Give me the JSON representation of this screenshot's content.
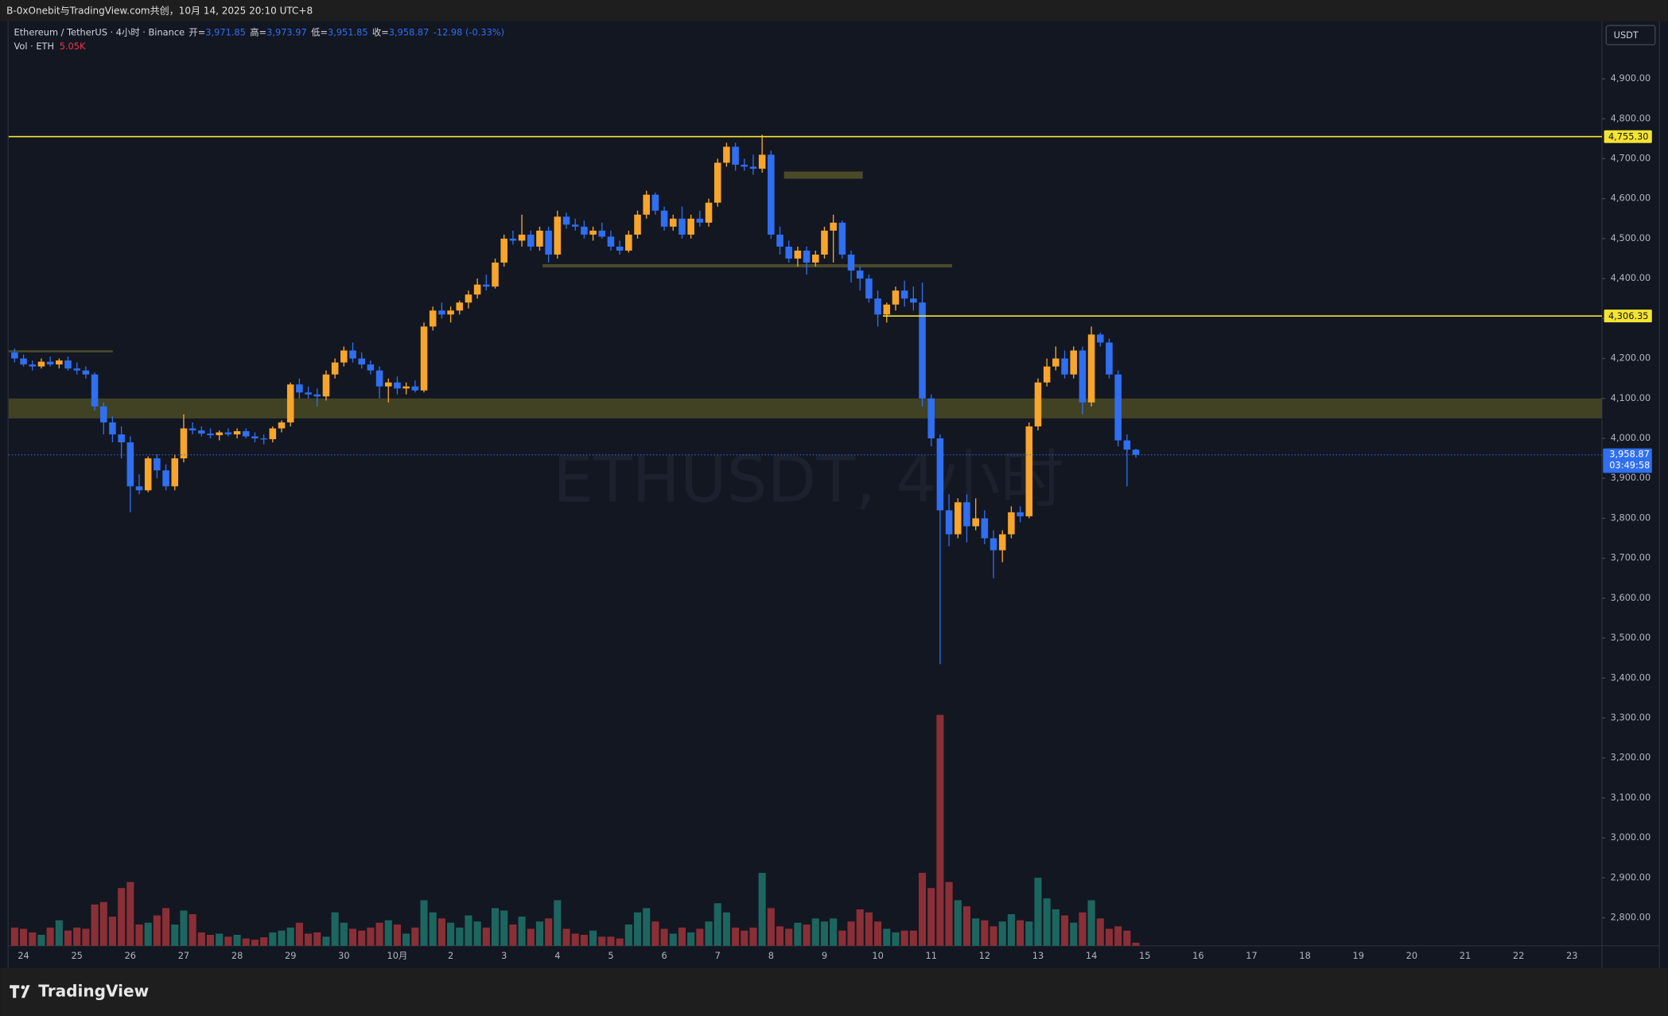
{
  "header": {
    "title": "B-0xOnebit与TradingView.com共创，10月 14, 2025 20:10 UTC+8"
  },
  "footer": {
    "brand": "TradingView"
  },
  "chart_data": {
    "type": "candlestick",
    "watermark": "ETHUSDT, 4小时",
    "currency": "USDT",
    "legend": {
      "symbol": "Ethereum / TetherUS · 4小时 · Binance",
      "open_label": "开=",
      "open": "3,971.85",
      "high_label": "高=",
      "high": "3,973.97",
      "low_label": "低=",
      "low": "3,951.85",
      "close_label": "收=",
      "close": "3,958.87",
      "change": "-12.98 (-0.33%)",
      "volume_name": "Vol · ETH",
      "volume": "5.05K"
    },
    "up_color": "#f7a52b",
    "down_color": "#2f6ff0",
    "vol_up_color": "#1d6660",
    "vol_down_color": "#8a2f36",
    "ylim": [
      2730,
      5044
    ],
    "yticks": [
      {
        "value": 2800,
        "label": "2,800.00"
      },
      {
        "value": 2900,
        "label": "2,900.00"
      },
      {
        "value": 3000,
        "label": "3,000.00"
      },
      {
        "value": 3100,
        "label": "3,100.00"
      },
      {
        "value": 3200,
        "label": "3,200.00"
      },
      {
        "value": 3300,
        "label": "3,300.00"
      },
      {
        "value": 3400,
        "label": "3,400.00"
      },
      {
        "value": 3500,
        "label": "3,500.00"
      },
      {
        "value": 3600,
        "label": "3,600.00"
      },
      {
        "value": 3700,
        "label": "3,700.00"
      },
      {
        "value": 3800,
        "label": "3,800.00"
      },
      {
        "value": 3900,
        "label": "3,900.00"
      },
      {
        "value": 4000,
        "label": "4,000.00"
      },
      {
        "value": 4100,
        "label": "4,100.00"
      },
      {
        "value": 4200,
        "label": "4,200.00"
      },
      {
        "value": 4300,
        "label": "4,300.00"
      },
      {
        "value": 4400,
        "label": "4,400.00"
      },
      {
        "value": 4500,
        "label": "4,500.00"
      },
      {
        "value": 4600,
        "label": "4,600.00"
      },
      {
        "value": 4700,
        "label": "4,700.00"
      },
      {
        "value": 4800,
        "label": "4,800.00"
      },
      {
        "value": 4900,
        "label": "4,900.00"
      }
    ],
    "xticks": [
      "24",
      "25",
      "26",
      "27",
      "28",
      "29",
      "30",
      "10月",
      "2",
      "3",
      "4",
      "5",
      "6",
      "7",
      "8",
      "9",
      "10",
      "11",
      "12",
      "13",
      "14",
      "15",
      "16",
      "17",
      "18",
      "19",
      "20",
      "21",
      "22",
      "23"
    ],
    "grid": false,
    "levels": [
      {
        "value": 4755.3,
        "label": "4,755.30"
      },
      {
        "value": 4306.35,
        "label": "4,306.35"
      }
    ],
    "zone": [
      4050,
      4100
    ],
    "support_lines": [
      4218,
      4432
    ],
    "box": [
      4650,
      4668
    ],
    "last_price_label": "3,958.87",
    "countdown": "03:49:58",
    "open": [
      4215,
      4200,
      4185,
      4180,
      4192,
      4185,
      4195,
      4175,
      4170,
      4160,
      4080,
      4040,
      4010,
      3990,
      3880,
      3870,
      3950,
      3920,
      3880,
      3950,
      4025,
      4020,
      4012,
      4008,
      4015,
      4010,
      4018,
      4005,
      4000,
      3998,
      4025,
      4040,
      4135,
      4115,
      4110,
      4105,
      4160,
      4190,
      4220,
      4200,
      4185,
      4170,
      4130,
      4140,
      4125,
      4130,
      4120,
      4280,
      4320,
      4310,
      4320,
      4340,
      4360,
      4385,
      4380,
      4440,
      4500,
      4495,
      4510,
      4480,
      4520,
      4460,
      4555,
      4535,
      4530,
      4510,
      4520,
      4505,
      4480,
      4470,
      4510,
      4560,
      4610,
      4570,
      4530,
      4550,
      4510,
      4550,
      4540,
      4590,
      4690,
      4730,
      4685,
      4680,
      4675,
      4710,
      4510,
      4480,
      4450,
      4470,
      4440,
      4460,
      4520,
      4540,
      4460,
      4420,
      4400,
      4350,
      4310,
      4335,
      4370,
      4350,
      4340,
      4100,
      4000,
      3820,
      3760,
      3840,
      3780,
      3800,
      3750,
      3720,
      3760,
      3815,
      3805,
      4030,
      4140,
      4180,
      4200,
      4160,
      4220,
      4090,
      4260,
      4240,
      4160,
      3995,
      3971.85
    ],
    "high": [
      4225,
      4210,
      4195,
      4200,
      4205,
      4200,
      4205,
      4190,
      4180,
      4165,
      4090,
      4055,
      4030,
      4005,
      3910,
      3955,
      3960,
      3935,
      3960,
      4060,
      4040,
      4030,
      4025,
      4020,
      4025,
      4025,
      4025,
      4015,
      4010,
      4030,
      4045,
      4140,
      4150,
      4130,
      4125,
      4170,
      4200,
      4230,
      4240,
      4215,
      4195,
      4180,
      4150,
      4155,
      4140,
      4145,
      4290,
      4330,
      4340,
      4330,
      4345,
      4370,
      4400,
      4410,
      4450,
      4510,
      4520,
      4560,
      4520,
      4530,
      4530,
      4570,
      4565,
      4550,
      4545,
      4530,
      4540,
      4520,
      4495,
      4520,
      4570,
      4620,
      4615,
      4580,
      4560,
      4580,
      4560,
      4570,
      4600,
      4700,
      4740,
      4740,
      4700,
      4710,
      4760,
      4720,
      4530,
      4495,
      4480,
      4480,
      4470,
      4530,
      4560,
      4545,
      4470,
      4430,
      4410,
      4370,
      4340,
      4380,
      4395,
      4380,
      4390,
      4110,
      4010,
      3860,
      3850,
      3860,
      3850,
      3820,
      3770,
      3770,
      3830,
      3830,
      4040,
      4150,
      4200,
      4230,
      4220,
      4230,
      4230,
      4280,
      4265,
      4250,
      4170,
      4010,
      3973.97
    ],
    "low": [
      4190,
      4180,
      4170,
      4175,
      4180,
      4175,
      4170,
      4160,
      4150,
      4070,
      4010,
      3990,
      3950,
      3815,
      3860,
      3865,
      3900,
      3870,
      3870,
      3940,
      4010,
      4005,
      4000,
      3995,
      4005,
      4000,
      4000,
      3990,
      3985,
      3990,
      4015,
      4030,
      4100,
      4100,
      4080,
      4095,
      4150,
      4180,
      4190,
      4175,
      4160,
      4100,
      4090,
      4110,
      4110,
      4115,
      4115,
      4270,
      4300,
      4290,
      4310,
      4325,
      4350,
      4370,
      4375,
      4430,
      4485,
      4480,
      4470,
      4470,
      4440,
      4450,
      4525,
      4520,
      4500,
      4495,
      4500,
      4470,
      4460,
      4465,
      4500,
      4550,
      4560,
      4520,
      4520,
      4500,
      4500,
      4530,
      4530,
      4580,
      4680,
      4670,
      4670,
      4660,
      4665,
      4500,
      4460,
      4440,
      4430,
      4410,
      4430,
      4450,
      4440,
      4450,
      4390,
      4370,
      4340,
      4280,
      4290,
      4320,
      4330,
      4320,
      4080,
      3980,
      3435,
      3730,
      3750,
      3740,
      3770,
      3735,
      3650,
      3690,
      3750,
      3790,
      3800,
      4020,
      4130,
      4170,
      4150,
      4150,
      4060,
      4080,
      4230,
      4150,
      3980,
      3880,
      3951.85
    ],
    "close": [
      4200,
      4185,
      4180,
      4192,
      4185,
      4195,
      4175,
      4170,
      4160,
      4080,
      4040,
      4010,
      3990,
      3880,
      3870,
      3950,
      3920,
      3880,
      3950,
      4025,
      4020,
      4012,
      4008,
      4015,
      4010,
      4018,
      4005,
      4000,
      3998,
      4025,
      4040,
      4135,
      4115,
      4110,
      4105,
      4160,
      4190,
      4220,
      4200,
      4185,
      4170,
      4130,
      4140,
      4125,
      4130,
      4120,
      4280,
      4320,
      4310,
      4320,
      4340,
      4360,
      4385,
      4380,
      4440,
      4500,
      4495,
      4510,
      4480,
      4520,
      4460,
      4555,
      4535,
      4530,
      4510,
      4520,
      4505,
      4480,
      4470,
      4510,
      4560,
      4610,
      4570,
      4530,
      4550,
      4510,
      4550,
      4540,
      4590,
      4690,
      4730,
      4685,
      4680,
      4675,
      4710,
      4510,
      4480,
      4450,
      4470,
      4440,
      4460,
      4520,
      4540,
      4460,
      4420,
      4400,
      4350,
      4310,
      4335,
      4370,
      4350,
      4340,
      4100,
      4000,
      3820,
      3760,
      3840,
      3780,
      3800,
      3750,
      3720,
      3760,
      3815,
      3805,
      4030,
      4140,
      4180,
      4200,
      4160,
      4220,
      4090,
      4260,
      4240,
      4160,
      3995,
      3971.85,
      3958.87
    ],
    "volume": [
      30000,
      28000,
      22000,
      18000,
      30000,
      42000,
      25000,
      30000,
      28000,
      68000,
      72000,
      48000,
      95000,
      105000,
      35000,
      38000,
      50000,
      62000,
      35000,
      58000,
      52000,
      22000,
      18000,
      20000,
      15000,
      18000,
      12000,
      10000,
      14000,
      22000,
      25000,
      30000,
      38000,
      20000,
      22000,
      15000,
      55000,
      38000,
      28000,
      25000,
      30000,
      38000,
      42000,
      35000,
      20000,
      30000,
      75000,
      55000,
      45000,
      38000,
      30000,
      50000,
      40000,
      30000,
      62000,
      58000,
      35000,
      48000,
      28000,
      40000,
      45000,
      75000,
      28000,
      20000,
      18000,
      25000,
      15000,
      15000,
      12000,
      35000,
      55000,
      62000,
      40000,
      28000,
      20000,
      30000,
      22000,
      28000,
      40000,
      70000,
      55000,
      30000,
      25000,
      30000,
      120000,
      62000,
      32000,
      28000,
      38000,
      35000,
      45000,
      40000,
      45000,
      25000,
      40000,
      60000,
      55000,
      40000,
      28000,
      22000,
      25000,
      25000,
      120000,
      95000,
      380000,
      105000,
      75000,
      65000,
      45000,
      42000,
      32000,
      40000,
      52000,
      42000,
      40000,
      112000,
      78000,
      60000,
      50000,
      38000,
      55000,
      75000,
      45000,
      28000,
      32000,
      25000,
      5050
    ]
  }
}
